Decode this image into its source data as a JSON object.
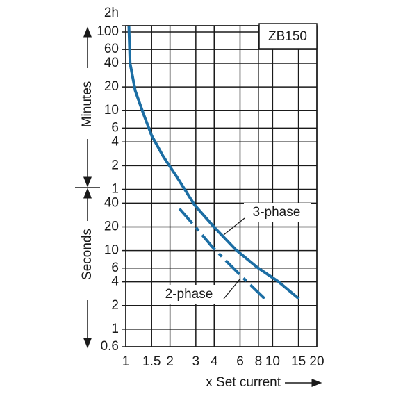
{
  "chart_data": {
    "type": "line",
    "x_label": "x Set current",
    "y_labels": [
      "Minutes",
      "Seconds"
    ],
    "annotation": "ZB150",
    "xscale": "log",
    "yscale": "log",
    "grid": true,
    "xlim": [
      1,
      20
    ],
    "xticks": [
      1,
      1.5,
      2,
      3,
      4,
      6,
      8,
      10,
      15,
      20
    ],
    "ylim": [
      0.6,
      7200
    ],
    "yticks": [
      0.6,
      1,
      2,
      4,
      6,
      10,
      20,
      40,
      {
        "value": 60,
        "label": "1"
      },
      {
        "value": 120,
        "label": "2"
      },
      {
        "value": 240,
        "label": "4"
      },
      {
        "value": 360,
        "label": "6"
      },
      {
        "value": 600,
        "label": "10"
      },
      {
        "value": 1200,
        "label": "20"
      },
      {
        "value": 2400,
        "label": "40"
      },
      {
        "value": 3600,
        "label": "60"
      },
      {
        "value": 6000,
        "label": "100"
      },
      {
        "value": 7200,
        "label": "2h"
      }
    ],
    "series": [
      {
        "name": "3-phase",
        "color": "#1c6ea4",
        "dash": false,
        "x": [
          1.05,
          1.07,
          1.16,
          1.3,
          1.5,
          1.8,
          2.24,
          2.94,
          4.0,
          5.66,
          7.87,
          10.9,
          15.1
        ],
        "values": [
          7200,
          2400,
          1080,
          590,
          290,
          157,
          85,
          38,
          19.8,
          10.1,
          6.1,
          4.05,
          2.44
        ]
      },
      {
        "name": "2-phase",
        "color": "#1c6ea4",
        "dash": true,
        "x": [
          2.32,
          2.94,
          3.87,
          5.08,
          6.67,
          9.06
        ],
        "values": [
          34,
          20.6,
          11.2,
          6.7,
          4.05,
          2.34
        ]
      }
    ]
  }
}
